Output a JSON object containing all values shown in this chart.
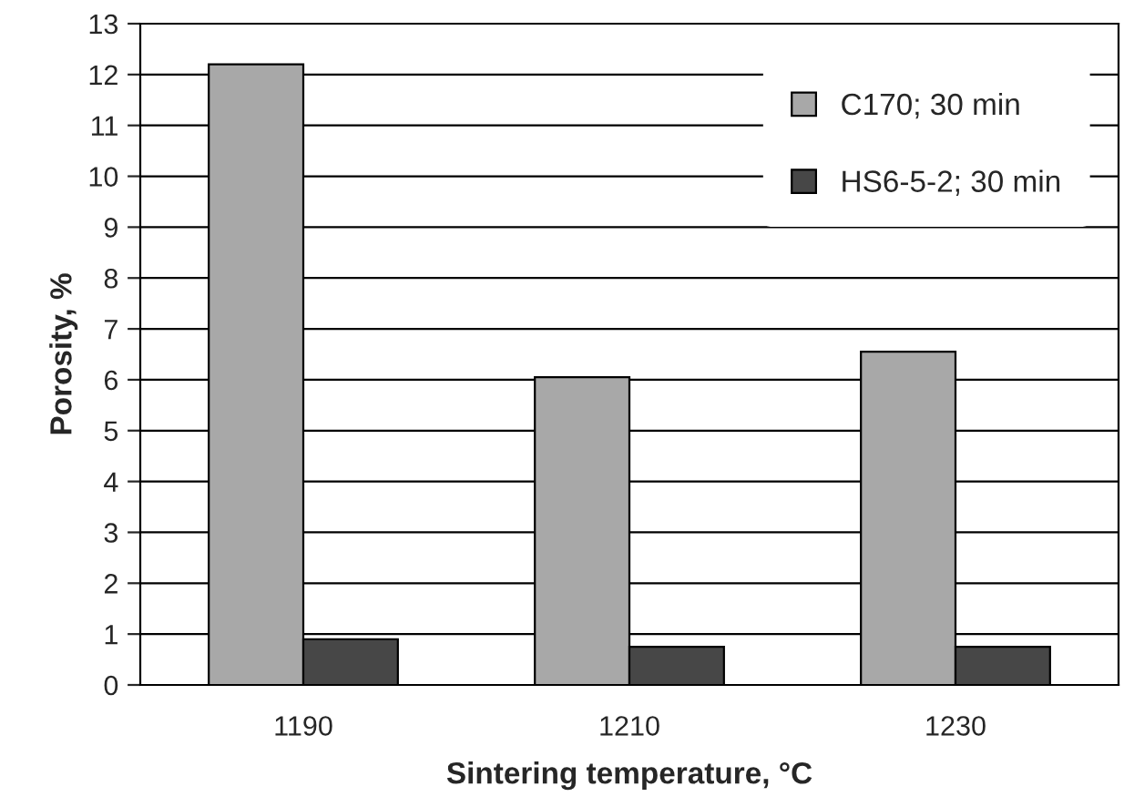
{
  "chart_data": {
    "type": "bar",
    "xlabel": "Sintering temperature, °C",
    "ylabel": "Porosity, %",
    "categories": [
      "1190",
      "1210",
      "1230"
    ],
    "series": [
      {
        "name": "C170; 30 min",
        "color": "#a8a8a8",
        "values": [
          12.2,
          6.05,
          6.55
        ]
      },
      {
        "name": "HS6-5-2; 30 min",
        "color": "#474747",
        "values": [
          0.9,
          0.75,
          0.75
        ]
      }
    ],
    "ylim": [
      0,
      13
    ],
    "yticks": [
      0,
      1,
      2,
      3,
      4,
      5,
      6,
      7,
      8,
      9,
      10,
      11,
      12,
      13
    ],
    "grid": "y",
    "legend": "top right"
  }
}
